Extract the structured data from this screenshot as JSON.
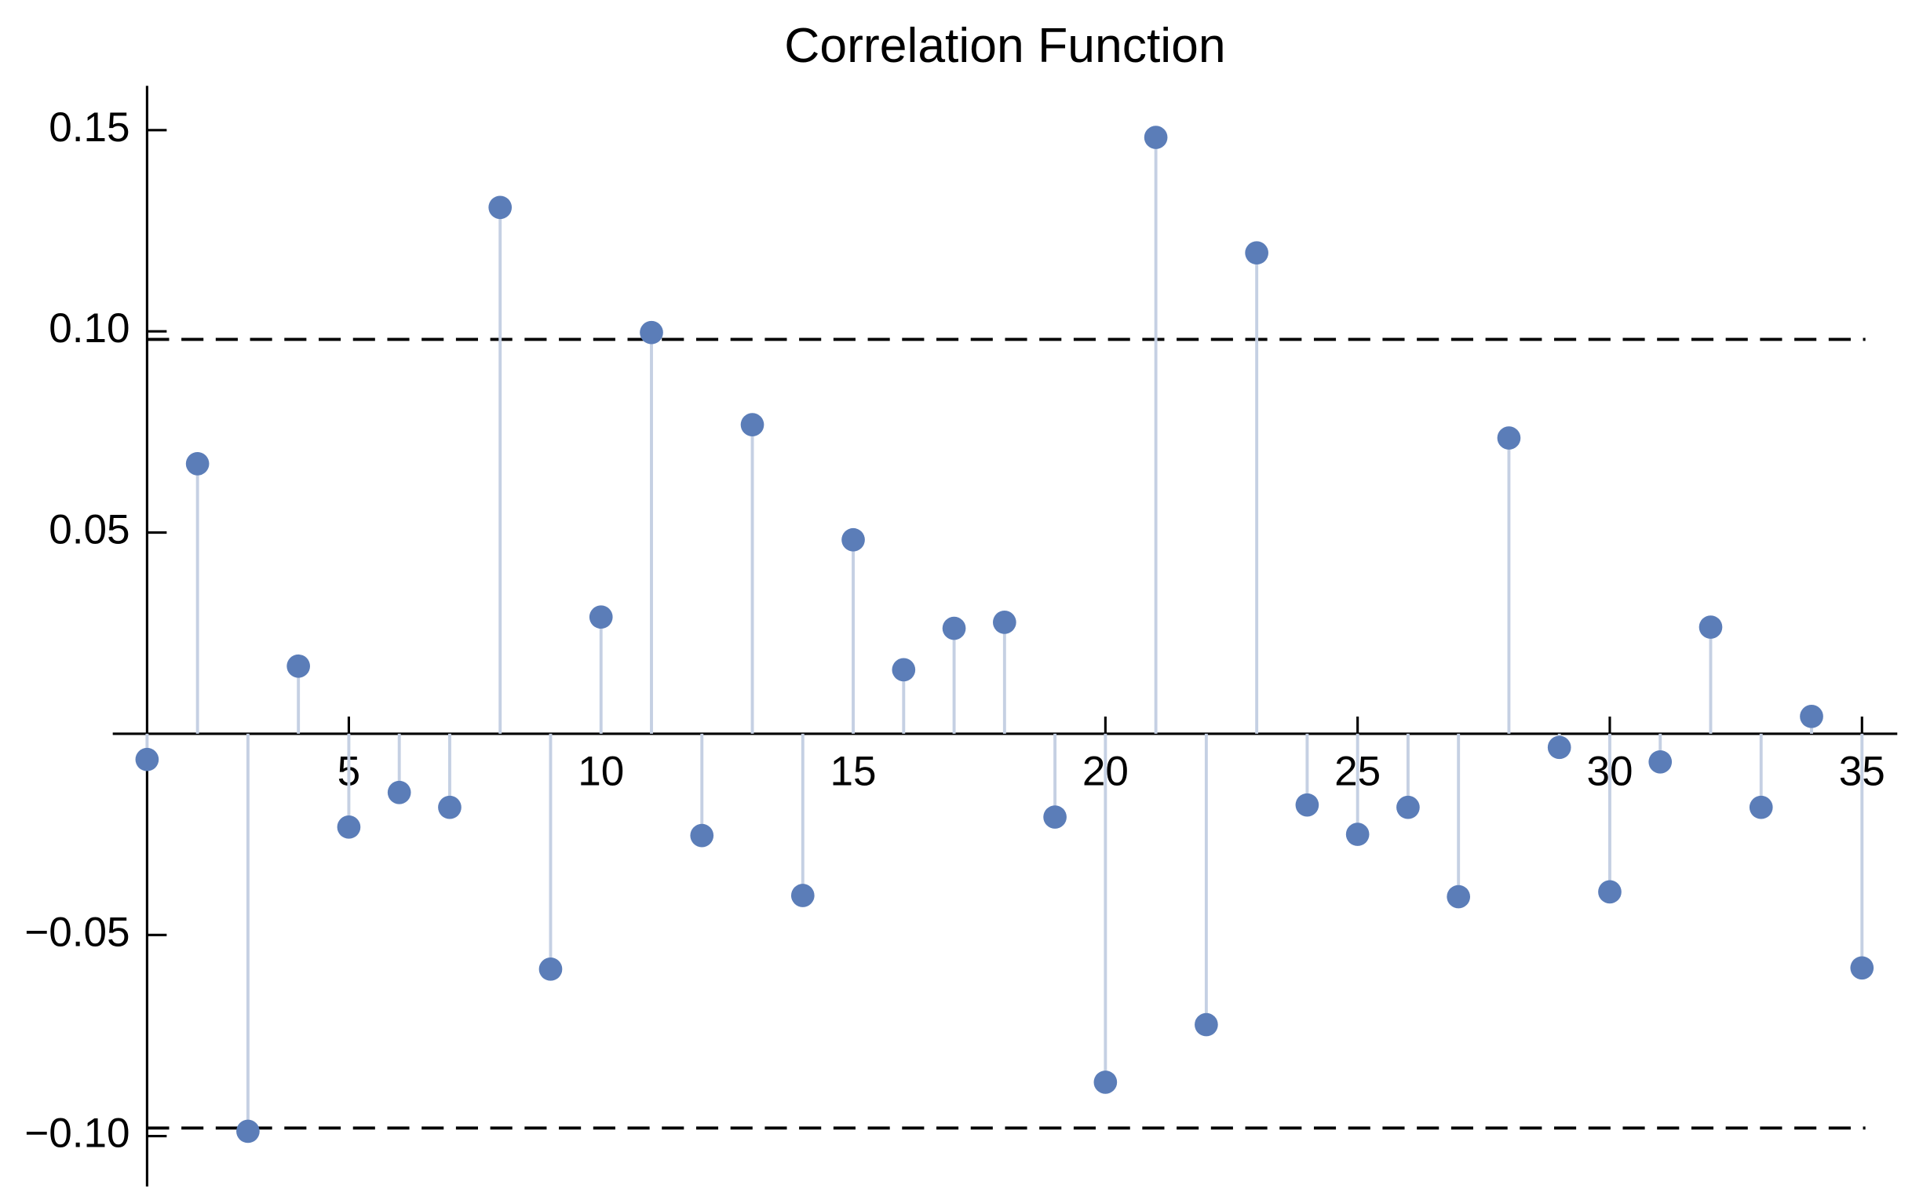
{
  "chart_data": {
    "type": "stem",
    "title": "Correlation Function",
    "x": [
      1,
      2,
      3,
      4,
      5,
      6,
      7,
      8,
      9,
      10,
      11,
      12,
      13,
      14,
      15,
      16,
      17,
      18,
      19,
      20,
      21,
      22,
      23,
      24,
      25,
      26,
      27,
      28,
      29,
      30,
      31,
      32,
      33,
      34,
      35
    ],
    "values": [
      -0.0064,
      0.0671,
      -0.0988,
      0.0168,
      -0.0232,
      -0.0146,
      -0.0183,
      0.1308,
      -0.0585,
      0.029,
      0.0997,
      -0.0253,
      0.0768,
      -0.0402,
      0.0482,
      0.0159,
      0.0262,
      0.0277,
      -0.0207,
      -0.0866,
      0.1482,
      -0.0723,
      0.1195,
      -0.0177,
      -0.025,
      -0.0183,
      -0.0405,
      0.0735,
      -0.0034,
      -0.0393,
      -0.007,
      0.0265,
      -0.0183,
      0.0043,
      -0.0582
    ],
    "color": "#5b7db8",
    "stem_color": "#c5d0e3",
    "xlim": [
      1,
      35.7
    ],
    "ylim": [
      -0.1125,
      0.161
    ],
    "xticks": [
      5,
      10,
      15,
      20,
      25,
      30,
      35
    ],
    "yticks": [
      {
        "value": -0.1,
        "label": "−0.10"
      },
      {
        "value": -0.05,
        "label": "−0.05"
      },
      0.05,
      {
        "value": 0.1,
        "label": "0.10"
      },
      0.15
    ],
    "reference_lines": [
      -0.098,
      0.098
    ]
  }
}
